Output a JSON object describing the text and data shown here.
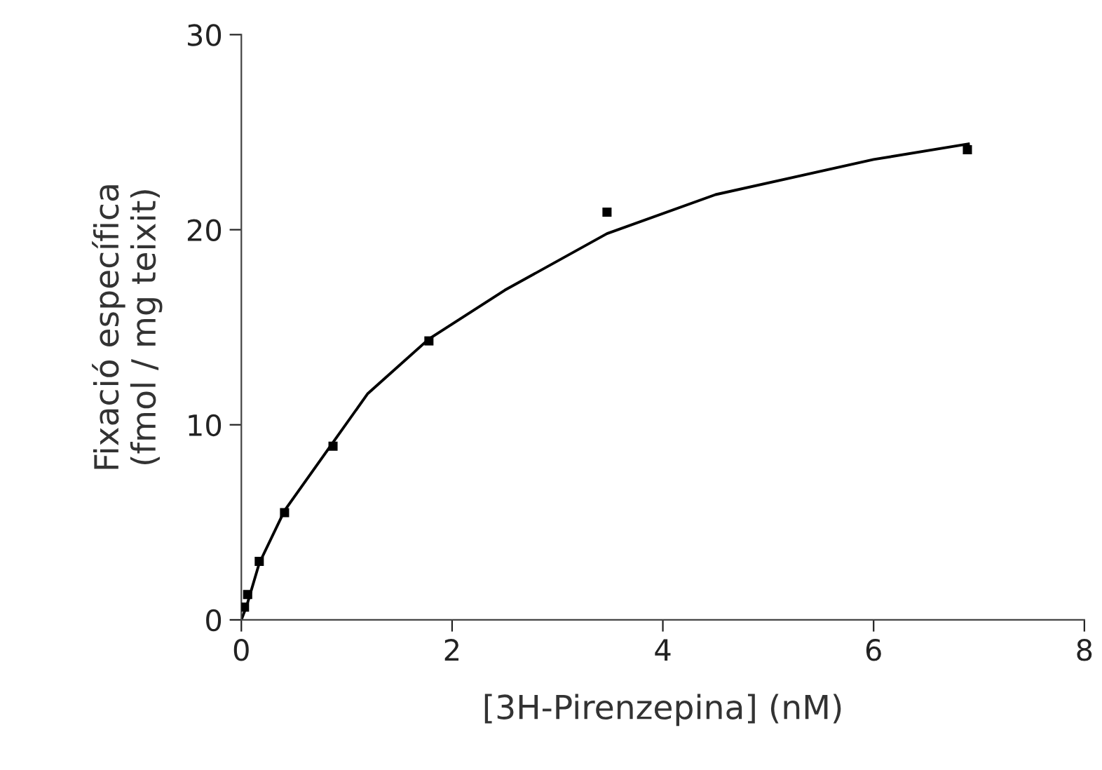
{
  "chart_data": {
    "type": "scatter",
    "xlabel": "[3H-Pirenzepina] (nM)",
    "ylabel": "Fixació específica\n(fmol / mg teixit)",
    "xlim": [
      0,
      8
    ],
    "ylim": [
      0,
      30
    ],
    "xticks": [
      0,
      2,
      4,
      6,
      8
    ],
    "yticks": [
      0,
      10,
      20,
      30
    ],
    "grid": false,
    "legend": false,
    "marker": "square",
    "series": [
      {
        "color": "#000000",
        "x": [
          0.03,
          0.06,
          0.17,
          0.41,
          0.87,
          1.78,
          3.47,
          6.89
        ],
        "values": [
          0.65,
          1.3,
          3.0,
          5.5,
          8.9,
          14.3,
          20.9,
          24.1
        ]
      },
      {
        "type": "line",
        "color": "#000000",
        "marker": "none",
        "line_style": "solid",
        "x": [
          0,
          0.05,
          0.17,
          0.41,
          0.87,
          1.2,
          1.78,
          2.5,
          3.47,
          4.5,
          6.0,
          6.9
        ],
        "values": [
          0,
          0.7,
          2.9,
          5.6,
          9.1,
          11.6,
          14.4,
          16.9,
          19.8,
          21.8,
          23.6,
          24.4
        ]
      }
    ]
  }
}
